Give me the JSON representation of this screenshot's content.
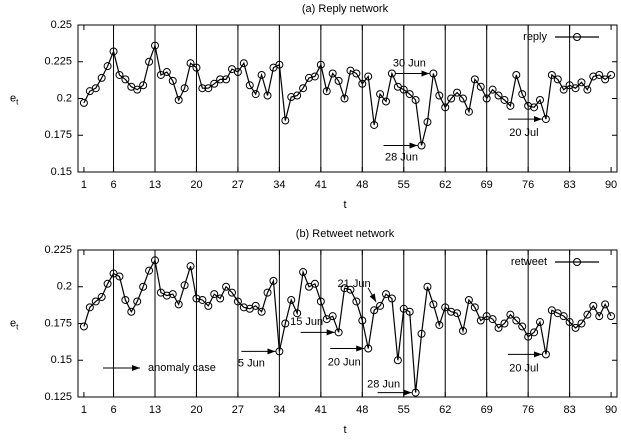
{
  "chart_data": [
    {
      "type": "line",
      "title": "(a) Reply network",
      "xlabel": "t",
      "ylabel": "e",
      "ylabel_sub": "t",
      "x": [
        1,
        2,
        3,
        4,
        5,
        6,
        7,
        8,
        9,
        10,
        11,
        12,
        13,
        14,
        15,
        16,
        17,
        18,
        19,
        20,
        21,
        22,
        23,
        24,
        25,
        26,
        27,
        28,
        29,
        30,
        31,
        32,
        33,
        34,
        35,
        36,
        37,
        38,
        39,
        40,
        41,
        42,
        43,
        44,
        45,
        46,
        47,
        48,
        49,
        50,
        51,
        52,
        53,
        54,
        55,
        56,
        57,
        58,
        59,
        60,
        61,
        62,
        63,
        64,
        65,
        66,
        67,
        68,
        69,
        70,
        71,
        72,
        73,
        74,
        75,
        76,
        77,
        78,
        79,
        80,
        81,
        82,
        83,
        84,
        85,
        86,
        87,
        88,
        89,
        90
      ],
      "series": [
        {
          "name": "reply",
          "color": "#000000",
          "values": [
            0.197,
            0.205,
            0.207,
            0.214,
            0.222,
            0.232,
            0.216,
            0.213,
            0.208,
            0.206,
            0.209,
            0.225,
            0.236,
            0.216,
            0.218,
            0.212,
            0.199,
            0.207,
            0.224,
            0.221,
            0.207,
            0.207,
            0.21,
            0.213,
            0.213,
            0.22,
            0.218,
            0.224,
            0.209,
            0.203,
            0.216,
            0.202,
            0.221,
            0.223,
            0.185,
            0.201,
            0.202,
            0.207,
            0.214,
            0.215,
            0.223,
            0.205,
            0.217,
            0.212,
            0.2,
            0.219,
            0.217,
            0.21,
            0.215,
            0.182,
            0.203,
            0.198,
            0.217,
            0.208,
            0.206,
            0.203,
            0.199,
            0.168,
            0.184,
            0.217,
            0.202,
            0.194,
            0.2,
            0.204,
            0.2,
            0.191,
            0.213,
            0.208,
            0.2,
            0.206,
            0.202,
            0.199,
            0.195,
            0.216,
            0.203,
            0.195,
            0.194,
            0.199,
            0.186,
            0.216,
            0.213,
            0.206,
            0.209,
            0.207,
            0.211,
            0.206,
            0.215,
            0.216,
            0.213,
            0.216
          ]
        }
      ],
      "xlim": [
        0,
        91
      ],
      "xticks": [
        1,
        6,
        13,
        20,
        27,
        34,
        41,
        48,
        55,
        62,
        69,
        76,
        83,
        90
      ],
      "ylim": [
        0.15,
        0.25
      ],
      "yticks": [
        0.15,
        0.175,
        0.2,
        0.225,
        0.25
      ],
      "vlines": [
        6,
        13,
        20,
        27,
        34,
        41,
        48,
        55,
        62,
        69,
        76,
        83
      ],
      "legend": "top-right",
      "annotations": [
        {
          "text": "30 Jun",
          "x": 60,
          "y": 0.217
        },
        {
          "text": "28 Jun",
          "x": 58,
          "y": 0.168
        },
        {
          "text": "20 Jul",
          "x": 79,
          "y": 0.186
        }
      ]
    },
    {
      "type": "line",
      "title": "(b) Retweet network",
      "xlabel": "t",
      "ylabel": "e",
      "ylabel_sub": "t",
      "x": [
        1,
        2,
        3,
        4,
        5,
        6,
        7,
        8,
        9,
        10,
        11,
        12,
        13,
        14,
        15,
        16,
        17,
        18,
        19,
        20,
        21,
        22,
        23,
        24,
        25,
        26,
        27,
        28,
        29,
        30,
        31,
        32,
        33,
        34,
        35,
        36,
        37,
        38,
        39,
        40,
        41,
        42,
        43,
        44,
        45,
        46,
        47,
        48,
        49,
        50,
        51,
        52,
        53,
        54,
        55,
        56,
        57,
        58,
        59,
        60,
        61,
        62,
        63,
        64,
        65,
        66,
        67,
        68,
        69,
        70,
        71,
        72,
        73,
        74,
        75,
        76,
        77,
        78,
        79,
        80,
        81,
        82,
        83,
        84,
        85,
        86,
        87,
        88,
        89,
        90
      ],
      "series": [
        {
          "name": "retweet",
          "color": "#000000",
          "values": [
            0.173,
            0.186,
            0.19,
            0.193,
            0.202,
            0.209,
            0.207,
            0.191,
            0.183,
            0.19,
            0.2,
            0.211,
            0.218,
            0.196,
            0.194,
            0.195,
            0.188,
            0.201,
            0.214,
            0.192,
            0.191,
            0.187,
            0.195,
            0.192,
            0.2,
            0.196,
            0.19,
            0.186,
            0.185,
            0.187,
            0.183,
            0.196,
            0.204,
            0.156,
            0.175,
            0.191,
            0.182,
            0.21,
            0.2,
            0.202,
            0.19,
            0.178,
            0.18,
            0.169,
            0.199,
            0.198,
            0.19,
            0.177,
            0.158,
            0.184,
            0.187,
            0.195,
            0.192,
            0.15,
            0.185,
            0.183,
            0.128,
            0.168,
            0.2,
            0.188,
            0.174,
            0.186,
            0.183,
            0.182,
            0.17,
            0.191,
            0.186,
            0.177,
            0.18,
            0.178,
            0.172,
            0.175,
            0.181,
            0.177,
            0.173,
            0.166,
            0.169,
            0.176,
            0.154,
            0.184,
            0.182,
            0.18,
            0.176,
            0.172,
            0.175,
            0.181,
            0.187,
            0.18,
            0.188,
            0.18
          ]
        }
      ],
      "xlim": [
        0,
        91
      ],
      "xticks": [
        1,
        6,
        13,
        20,
        27,
        34,
        41,
        48,
        55,
        62,
        69,
        76,
        83,
        90
      ],
      "ylim": [
        0.125,
        0.225
      ],
      "yticks": [
        0.125,
        0.15,
        0.175,
        0.2,
        0.225
      ],
      "vlines": [
        6,
        13,
        20,
        27,
        34,
        41,
        48,
        55,
        62,
        69,
        76,
        83
      ],
      "legend": "top-right",
      "annotations": [
        {
          "text": "anomaly case"
        },
        {
          "text": "5 Jun",
          "x": 34,
          "y": 0.156
        },
        {
          "text": "15 Jun",
          "x": 44,
          "y": 0.169
        },
        {
          "text": "20 Jun",
          "x": 49,
          "y": 0.158
        },
        {
          "text": "21 Jun",
          "x": 51,
          "y": 0.187
        },
        {
          "text": "28 Jun",
          "x": 57,
          "y": 0.128
        },
        {
          "text": "20 Jul",
          "x": 79,
          "y": 0.154
        }
      ]
    }
  ]
}
